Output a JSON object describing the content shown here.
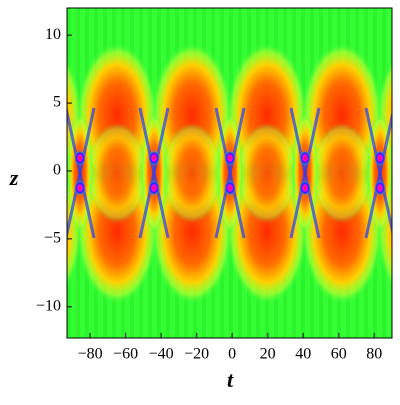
{
  "chart_data": {
    "type": "density",
    "x_label": "t",
    "y_label": "z",
    "xlim": [
      -93,
      90
    ],
    "ylim": [
      -12.3,
      12
    ],
    "xticks": [
      {
        "value": -80,
        "label": "−80"
      },
      {
        "value": -60,
        "label": "−60"
      },
      {
        "value": -40,
        "label": "−40"
      },
      {
        "value": -20,
        "label": "−20"
      },
      0,
      20,
      40,
      60,
      80
    ],
    "yticks": [
      {
        "value": -10,
        "label": "−10"
      },
      {
        "value": -5,
        "label": "−5"
      },
      0,
      5,
      10
    ]
  }
}
